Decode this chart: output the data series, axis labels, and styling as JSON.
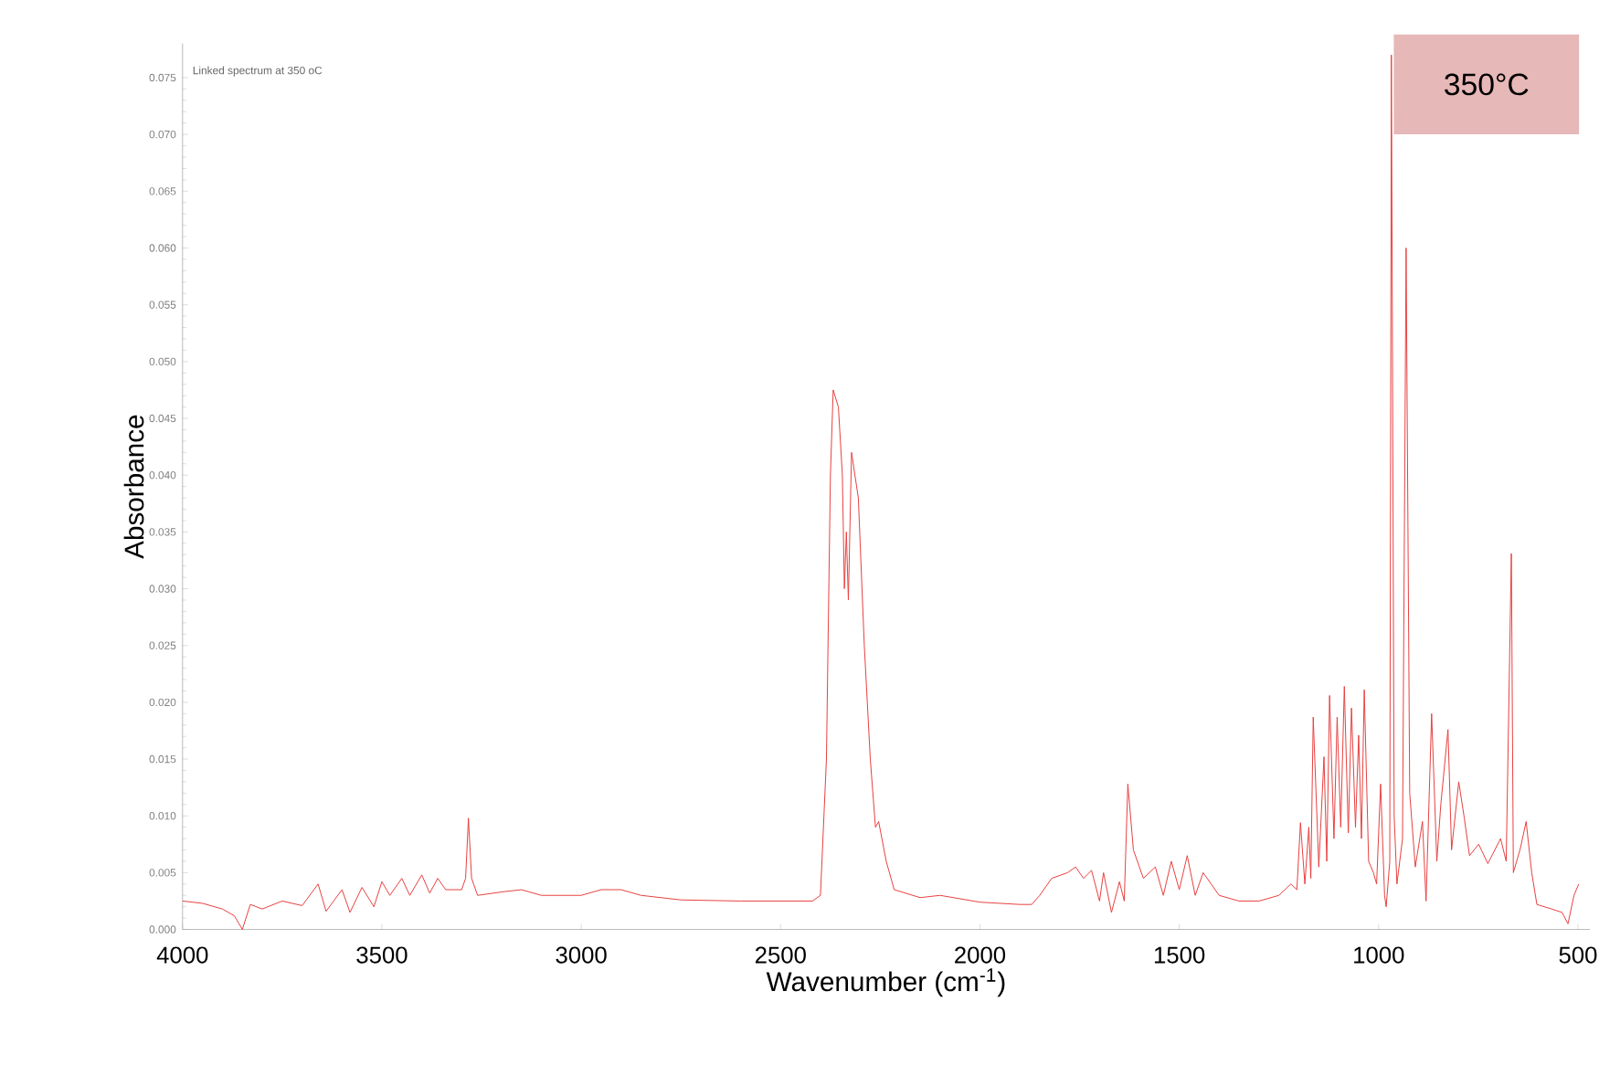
{
  "chart_data": {
    "type": "line",
    "title": "Linked spectrum at 350 oC",
    "xlabel": "Wavenumber (cm$^{-1}$)",
    "ylabel": "Absorbance",
    "annotations": [
      "350°C"
    ],
    "xlim": [
      4000,
      470
    ],
    "ylim": [
      0,
      0.078
    ],
    "xticks": [
      4000,
      3500,
      3000,
      2500,
      2000,
      1500,
      1000,
      500
    ],
    "yticks": [
      {
        "value": 0,
        "label": "0.000"
      },
      {
        "value": 0.005,
        "label": "0.005"
      },
      {
        "value": 0.01,
        "label": "0.010"
      },
      {
        "value": 0.015,
        "label": "0.015"
      },
      {
        "value": 0.02,
        "label": "0.020"
      },
      {
        "value": 0.025,
        "label": "0.025"
      },
      {
        "value": 0.03,
        "label": "0.030"
      },
      {
        "value": 0.035,
        "label": "0.035"
      },
      {
        "value": 0.04,
        "label": "0.040"
      },
      {
        "value": 0.045,
        "label": "0.045"
      },
      {
        "value": 0.05,
        "label": "0.050"
      },
      {
        "value": 0.055,
        "label": "0.055"
      },
      {
        "value": 0.06,
        "label": "0.060"
      },
      {
        "value": 0.065,
        "label": "0.065"
      },
      {
        "value": 0.07,
        "label": "0.070"
      },
      {
        "value": 0.075,
        "label": "0.075"
      }
    ],
    "series": [
      {
        "color": "#e83f3f",
        "x": [
          4000,
          3950,
          3900,
          3870,
          3850,
          3830,
          3800,
          3750,
          3700,
          3660,
          3640,
          3600,
          3580,
          3550,
          3520,
          3500,
          3480,
          3450,
          3430,
          3400,
          3380,
          3360,
          3340,
          3300,
          3290,
          3283,
          3275,
          3260,
          3200,
          3150,
          3100,
          3000,
          2950,
          2900,
          2850,
          2750,
          2600,
          2420,
          2400,
          2385,
          2375,
          2368,
          2355,
          2345,
          2340,
          2335,
          2330,
          2322,
          2305,
          2290,
          2275,
          2262,
          2254,
          2235,
          2215,
          2150,
          2100,
          2000,
          1900,
          1870,
          1850,
          1820,
          1780,
          1760,
          1740,
          1720,
          1700,
          1690,
          1670,
          1650,
          1638,
          1629,
          1615,
          1590,
          1560,
          1540,
          1520,
          1500,
          1480,
          1460,
          1440,
          1400,
          1350,
          1300,
          1250,
          1220,
          1205,
          1196,
          1185,
          1175,
          1170,
          1164,
          1150,
          1137,
          1130,
          1123,
          1112,
          1104,
          1095,
          1086,
          1076,
          1068,
          1058,
          1050,
          1043,
          1036,
          1025,
          1013,
          1005,
          995,
          985,
          981,
          972,
          968,
          961,
          954,
          940,
          931,
          922,
          908,
          890,
          881,
          867,
          854,
          844,
          826,
          817,
          799,
          785,
          772,
          749,
          726,
          694,
          680,
          667,
          662,
          644,
          630,
          616,
          603,
          566,
          540,
          525,
          510,
          498
        ],
        "values": [
          0.0025,
          0.0023,
          0.0018,
          0.0012,
          0.0,
          0.0022,
          0.0018,
          0.0025,
          0.0021,
          0.004,
          0.0016,
          0.0035,
          0.0015,
          0.0037,
          0.002,
          0.0042,
          0.003,
          0.0045,
          0.003,
          0.0048,
          0.0032,
          0.0045,
          0.0035,
          0.0035,
          0.0045,
          0.0098,
          0.0045,
          0.003,
          0.0033,
          0.0035,
          0.003,
          0.003,
          0.0035,
          0.0035,
          0.003,
          0.0026,
          0.0025,
          0.0025,
          0.003,
          0.015,
          0.04,
          0.0475,
          0.046,
          0.04,
          0.03,
          0.035,
          0.029,
          0.042,
          0.038,
          0.025,
          0.015,
          0.009,
          0.0095,
          0.006,
          0.0035,
          0.0028,
          0.003,
          0.0024,
          0.0022,
          0.0022,
          0.003,
          0.0045,
          0.005,
          0.0055,
          0.0045,
          0.0052,
          0.0025,
          0.005,
          0.0015,
          0.0042,
          0.0025,
          0.0128,
          0.007,
          0.0045,
          0.0055,
          0.003,
          0.006,
          0.0035,
          0.0065,
          0.003,
          0.005,
          0.003,
          0.0025,
          0.0025,
          0.003,
          0.004,
          0.0035,
          0.0094,
          0.004,
          0.009,
          0.0045,
          0.0187,
          0.0055,
          0.0152,
          0.006,
          0.0206,
          0.008,
          0.0187,
          0.009,
          0.0214,
          0.0085,
          0.0195,
          0.009,
          0.0171,
          0.008,
          0.0211,
          0.006,
          0.005,
          0.004,
          0.0128,
          0.003,
          0.002,
          0.006,
          0.077,
          0.01,
          0.004,
          0.008,
          0.06,
          0.012,
          0.0055,
          0.0095,
          0.0025,
          0.019,
          0.006,
          0.011,
          0.0176,
          0.007,
          0.013,
          0.0098,
          0.0065,
          0.0075,
          0.0058,
          0.008,
          0.006,
          0.0331,
          0.005,
          0.0072,
          0.0095,
          0.005,
          0.0022,
          0.0018,
          0.0015,
          0.0005,
          0.003,
          0.004
        ]
      }
    ]
  }
}
